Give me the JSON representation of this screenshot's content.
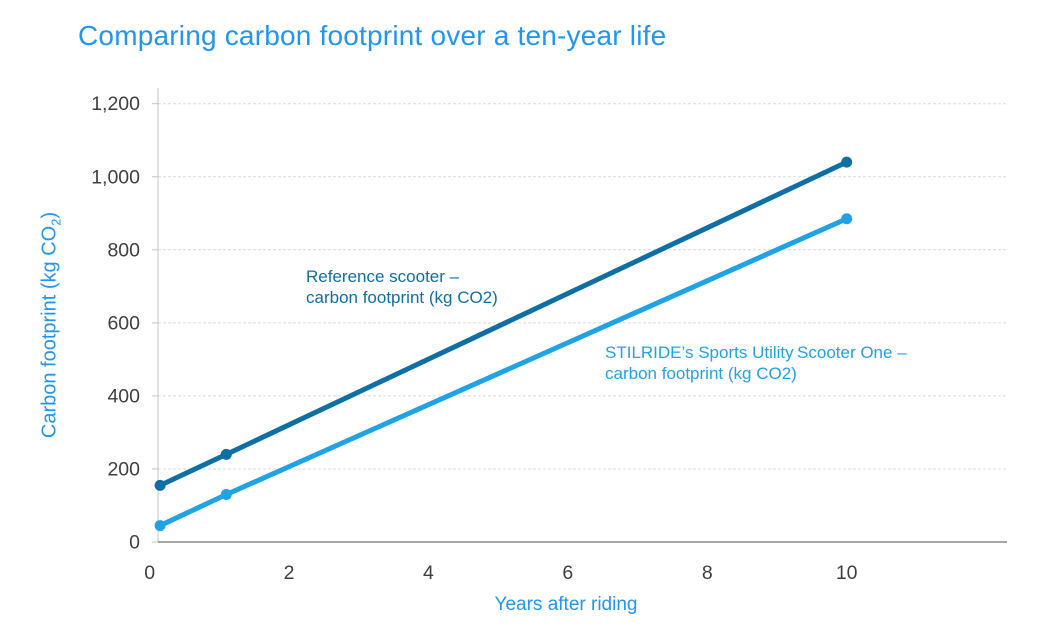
{
  "page_title": "Comparing carbon footprint over a ten-year life",
  "colors": {
    "accent_blue": "#2196f0",
    "series_dark_blue": "#0e6fa5",
    "series_light_blue": "#20a3e4",
    "tick_text": "#3f3f3f",
    "gridline": "#d9d9d9",
    "axis_line": "#c4c4c4",
    "baseline": "#a6a6a6",
    "background": "#ffffff"
  },
  "y_axis_title": {
    "prefix": "Carbon footprint (kg CO",
    "sub": "2",
    "suffix": ")"
  },
  "annotations": [
    {
      "id": "reference",
      "line1": "Reference scooter –",
      "line2": "carbon footprint (kg CO2)",
      "color": "#0e6fa5"
    },
    {
      "id": "stilride",
      "line1": "STILRIDE’s Sports Utility Scooter One –",
      "line2": "carbon footprint (kg CO2)",
      "color": "#20a3e4"
    }
  ],
  "chart_data": {
    "type": "line",
    "title": "Comparing carbon footprint over a ten-year life",
    "xlabel": "Years after riding",
    "ylabel": "Carbon footprint (kg CO2)",
    "x": [
      0.15,
      1.1,
      10
    ],
    "series": [
      {
        "name": "Reference scooter – carbon footprint (kg CO2)",
        "color": "#0e6fa5",
        "values": [
          155,
          240,
          1040
        ]
      },
      {
        "name": "STILRIDE’s Sports Utility Scooter One – carbon footprint (kg CO2)",
        "color": "#20a3e4",
        "values": [
          45,
          130,
          885
        ]
      }
    ],
    "xticks": {
      "values": [
        0,
        2,
        4,
        6,
        8,
        10
      ],
      "labels": [
        "0",
        "2",
        "4",
        "6",
        "8",
        "10"
      ]
    },
    "yticks": {
      "values": [
        0,
        200,
        400,
        600,
        800,
        1000,
        1200
      ],
      "labels": [
        "0",
        "200",
        "400",
        "600",
        "800",
        "1,000",
        "1,200"
      ]
    },
    "xlim": [
      0.12,
      12.3
    ],
    "ylim": [
      0,
      1243
    ],
    "grid": "horizontal-dashed",
    "legend": "inline-annotations",
    "marker": "filled-circle"
  }
}
